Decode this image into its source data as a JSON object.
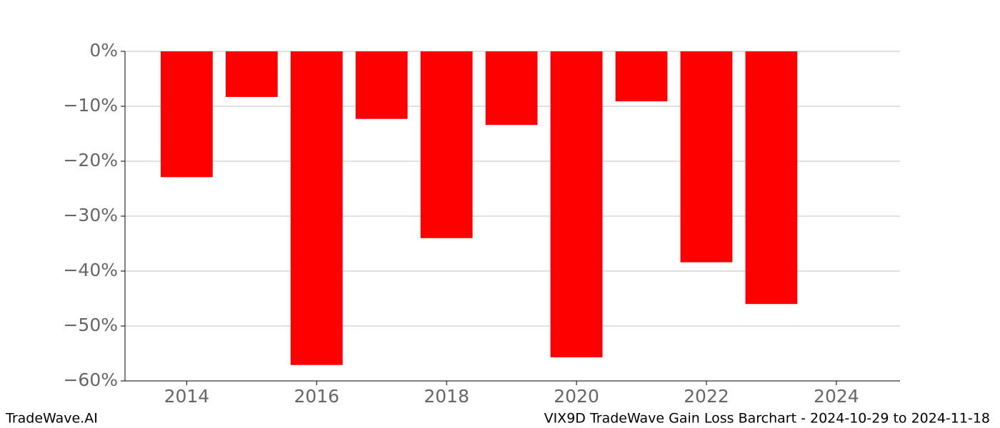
{
  "chart_data": {
    "type": "bar",
    "x": [
      2014,
      2015,
      2016,
      2017,
      2018,
      2019,
      2020,
      2021,
      2022,
      2023
    ],
    "values": [
      -22.9,
      -8.3,
      -57.1,
      -12.3,
      -34.0,
      -13.4,
      -55.7,
      -9.1,
      -38.4,
      -46.0
    ],
    "color": "#ff0000",
    "xlim": [
      2013.05,
      2024.98
    ],
    "xticks": [
      2014,
      2016,
      2018,
      2020,
      2022,
      2024
    ],
    "ylim": [
      -60,
      0
    ],
    "yticks": [
      {
        "value": 0,
        "label": "0%"
      },
      {
        "value": -10,
        "label": "−10%"
      },
      {
        "value": -20,
        "label": "−20%"
      },
      {
        "value": -30,
        "label": "−30%"
      },
      {
        "value": -40,
        "label": "−40%"
      },
      {
        "value": -50,
        "label": "−50%"
      },
      {
        "value": -60,
        "label": "−60%"
      }
    ],
    "grid": true
  },
  "footer": {
    "left": "TradeWave.AI",
    "right": "VIX9D TradeWave Gain Loss Barchart - 2024-10-29 to 2024-11-18"
  }
}
